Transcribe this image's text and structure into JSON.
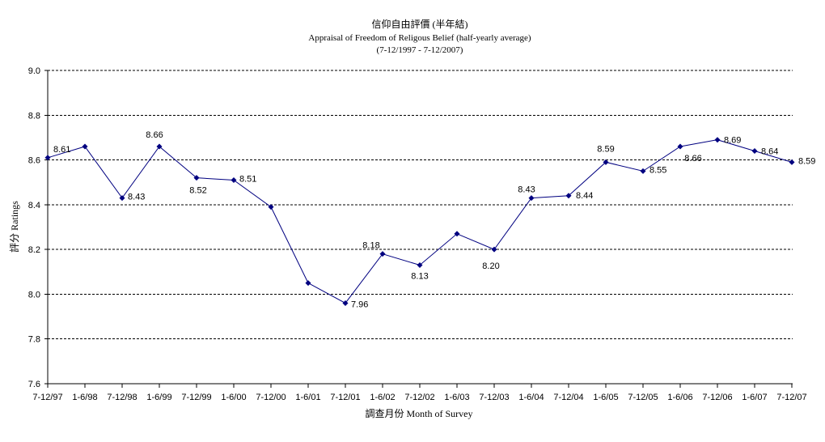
{
  "chart_data": {
    "type": "line",
    "title": "信仰自由評價 (半年結)",
    "subtitle": "Appraisal of Freedom of Religous Belief (half-yearly average)",
    "date_range": "(7-12/1997 - 7-12/2007)",
    "xlabel": "調查月份 Month of Survey",
    "ylabel": "評分 Ratings",
    "ylim": [
      7.6,
      9.0
    ],
    "yticks": [
      "7.6",
      "7.8",
      "8.0",
      "8.2",
      "8.4",
      "8.6",
      "8.8",
      "9.0"
    ],
    "categories": [
      "7-12/97",
      "1-6/98",
      "7-12/98",
      "1-6/99",
      "7-12/99",
      "1-6/00",
      "7-12/00",
      "1-6/01",
      "7-12/01",
      "1-6/02",
      "7-12/02",
      "1-6/03",
      "7-12/03",
      "1-6/04",
      "7-12/04",
      "1-6/05",
      "7-12/05",
      "1-6/06",
      "7-12/06",
      "1-6/07",
      "7-12/07"
    ],
    "series": [
      {
        "values": [
          8.61,
          8.66,
          8.43,
          8.66,
          8.52,
          8.51,
          8.39,
          8.05,
          7.96,
          8.18,
          8.13,
          8.27,
          8.2,
          8.43,
          8.44,
          8.59,
          8.55,
          8.66,
          8.69,
          8.64,
          8.59
        ],
        "data_labels": [
          "8.61",
          null,
          "8.43",
          "8.66",
          "8.52",
          "8.51",
          null,
          null,
          "7.96",
          "8.18",
          "8.13",
          null,
          "8.20",
          "8.43",
          "8.44",
          "8.59",
          "8.55",
          "8.66",
          "8.69",
          "8.64",
          "8.59"
        ],
        "color": "#000080",
        "marker": "diamond"
      }
    ],
    "grid": true,
    "legend": "none"
  }
}
